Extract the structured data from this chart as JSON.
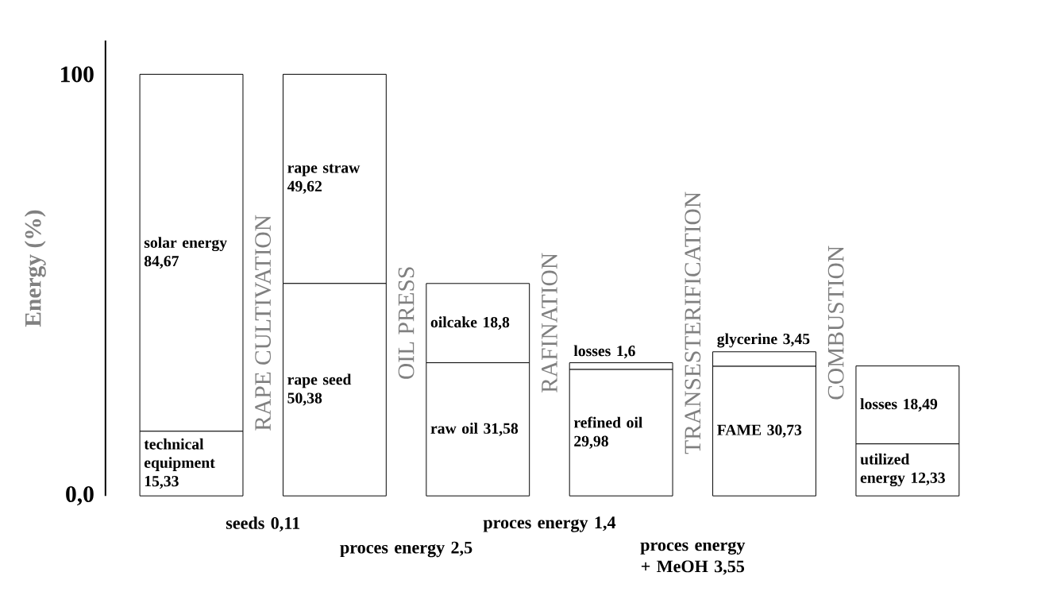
{
  "chart_data": {
    "type": "bar",
    "stacked": true,
    "ylabel": "Energy (%)",
    "categories": [
      null,
      null,
      null,
      null,
      null,
      null
    ],
    "series": [
      {
        "color": "#ffffff",
        "values": [
          15.33,
          50.38,
          31.58,
          29.98,
          30.73,
          12.33
        ],
        "value_labels": [
          "technical equipment 15,33",
          "rape seed 50,38",
          "raw oil 31,58",
          "refined oil 29,98",
          "FAME 30,73",
          "utilized energy 12,33"
        ]
      },
      {
        "color": "#ffffff",
        "values": [
          84.67,
          49.62,
          18.8,
          1.6,
          3.45,
          18.49
        ],
        "value_labels": [
          "solar energy 84,67",
          "rape straw 49,62",
          "oilcake 18,8",
          "losses 1,6",
          "glycerine 3,45",
          "losses 18,49"
        ]
      }
    ],
    "ylim": [
      0,
      108
    ],
    "yticks": [
      {
        "value": 0,
        "label": "0,0"
      },
      100
    ],
    "annotations": [
      "RAPE CULTIVATION",
      "OIL PRESS",
      "RAFINATION",
      "TRANSESTERIFICATION",
      "COMBUSTION",
      "seeds 0,11",
      "proces energy 2,5",
      "proces energy 1,4",
      "proces energy + MeOH 3,55"
    ]
  }
}
